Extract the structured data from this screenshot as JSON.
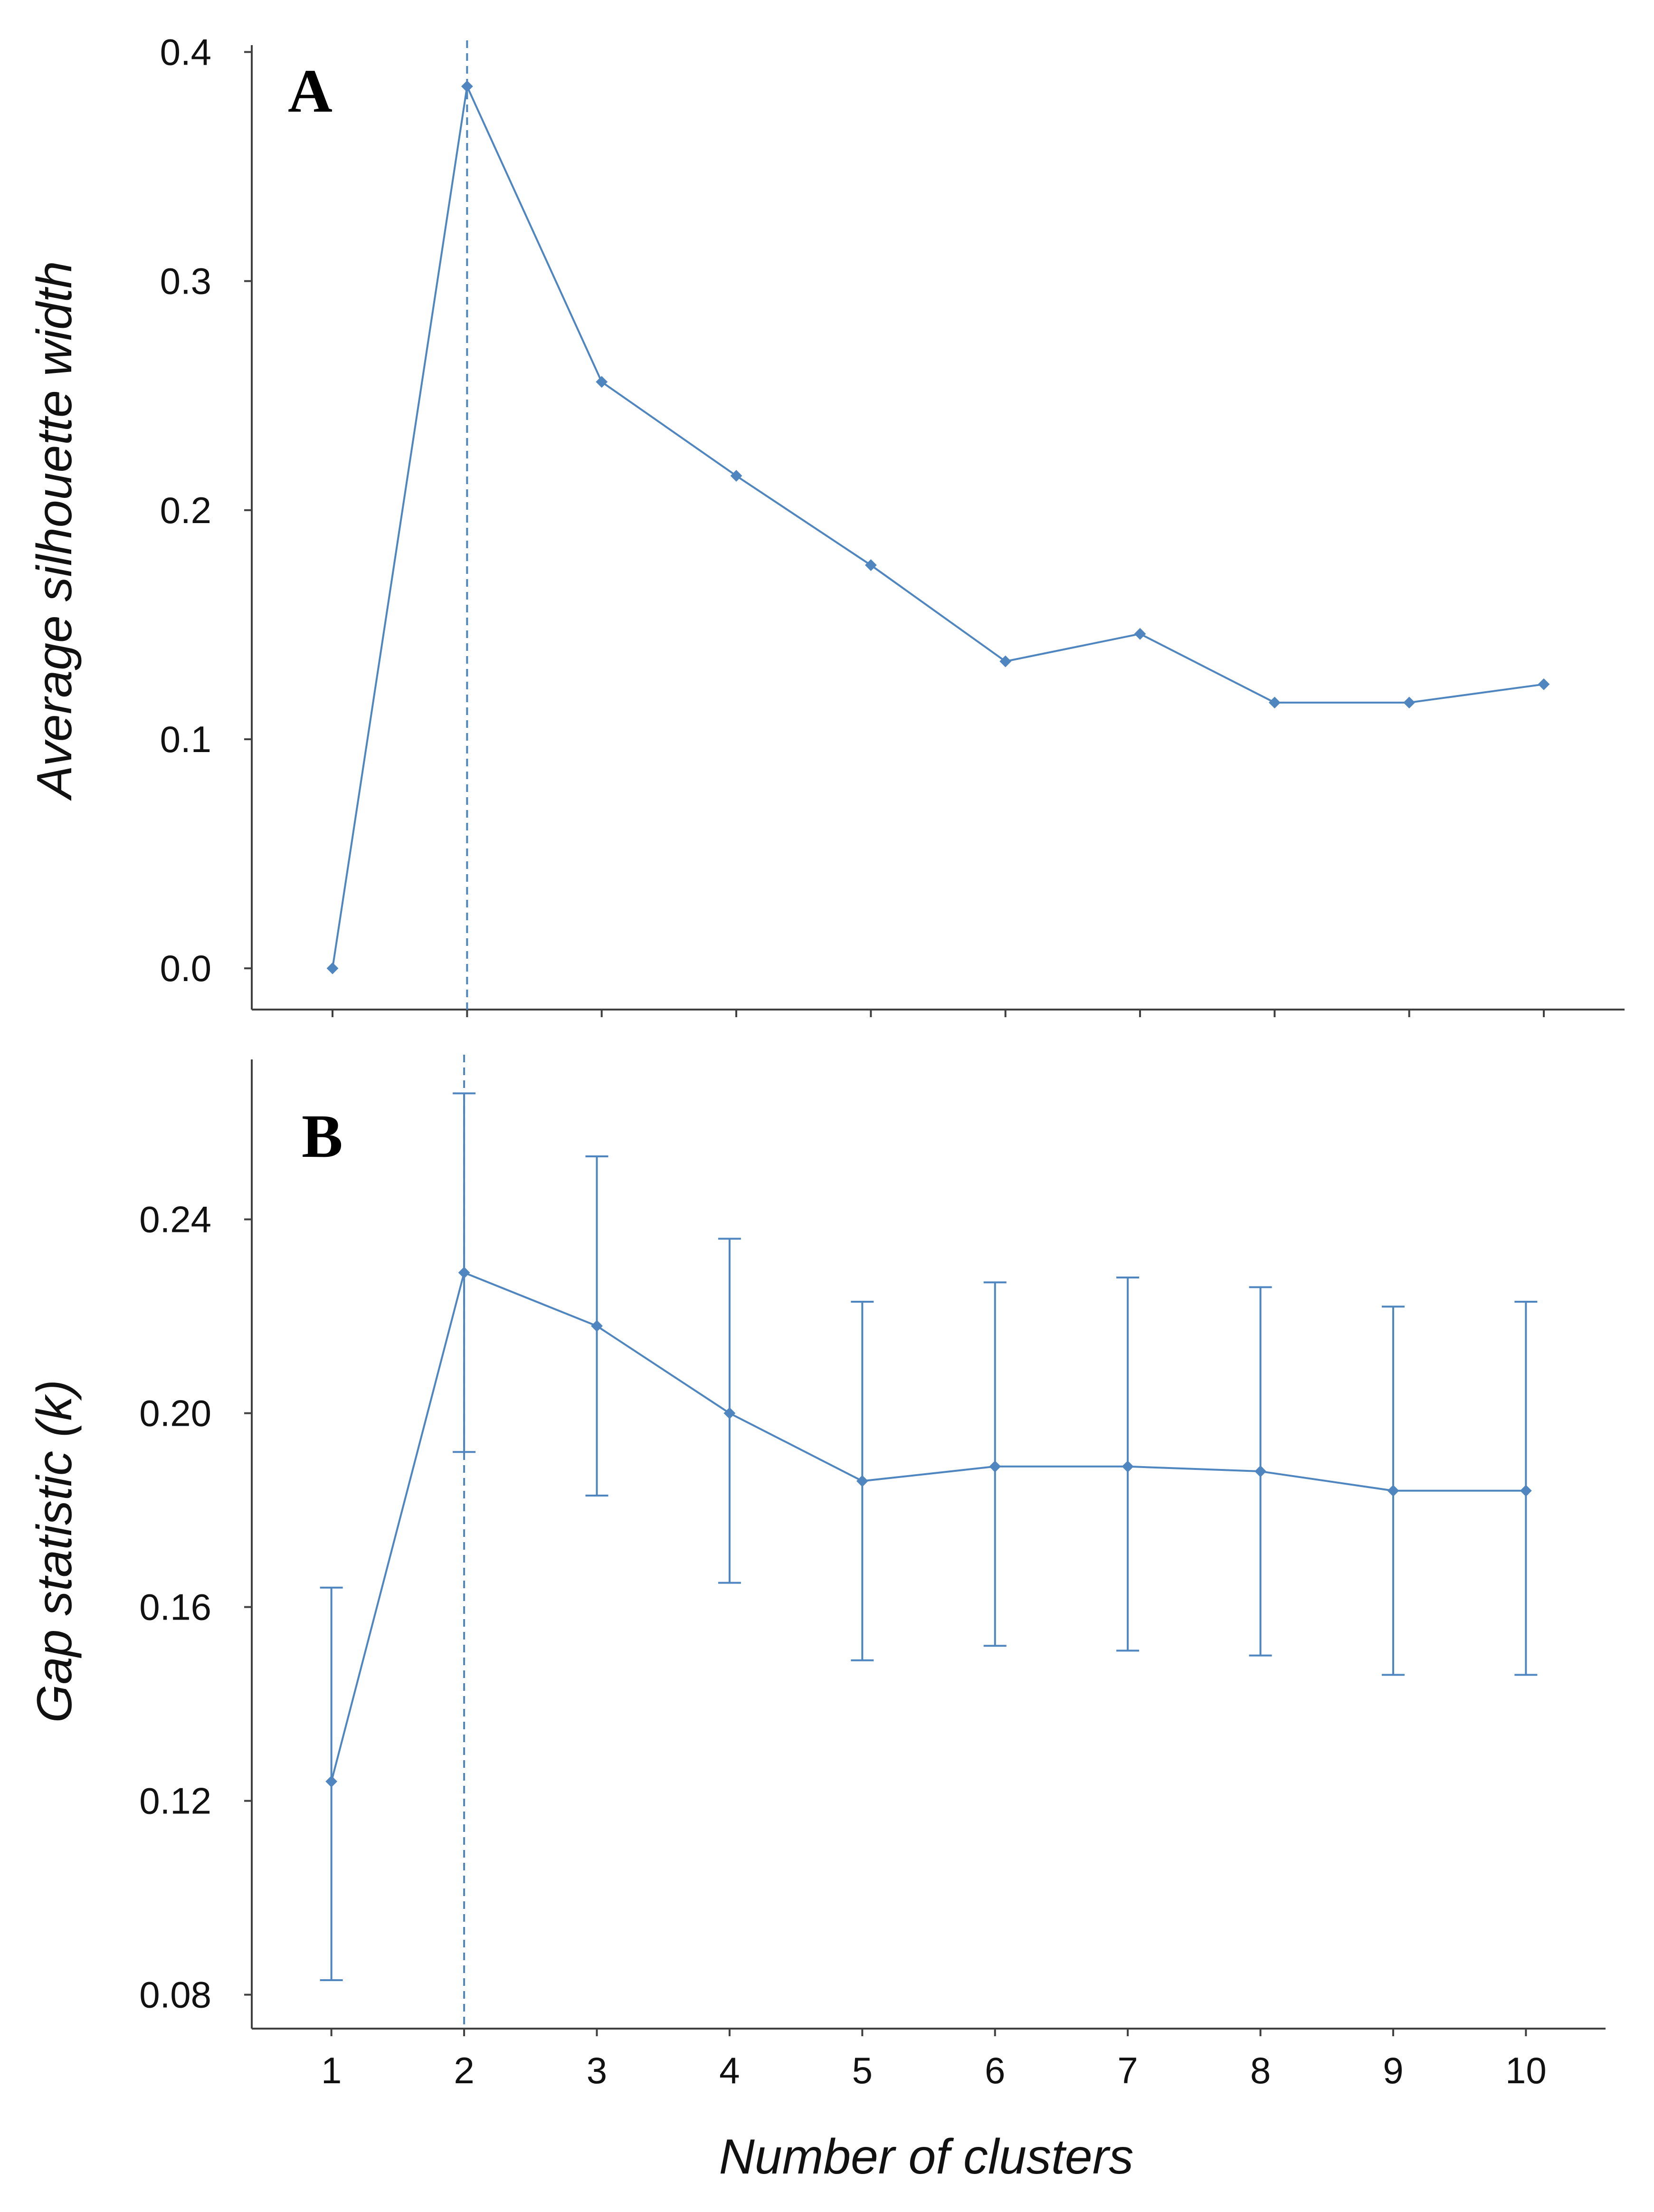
{
  "colors": {
    "series": "#4f86c0",
    "axis": "#404040",
    "text": "#111111"
  },
  "chart_data": [
    {
      "type": "line",
      "panel": "A",
      "ylabel": "Average silhouette width",
      "xlabel": "",
      "x": [
        1,
        2,
        3,
        4,
        5,
        6,
        7,
        8,
        9,
        10
      ],
      "values": [
        0.0,
        0.385,
        0.256,
        0.215,
        0.176,
        0.134,
        0.146,
        0.116,
        0.116,
        0.124
      ],
      "ylim": [
        -0.018,
        0.403
      ],
      "yticks": [
        0.0,
        0.1,
        0.2,
        0.3,
        0.4
      ],
      "ytick_labels": [
        "0.0",
        "0.1",
        "0.2",
        "0.3",
        "0.4"
      ],
      "xlim": [
        0.4,
        10.6
      ],
      "reference_x": 2,
      "grid": false
    },
    {
      "type": "line",
      "panel": "B",
      "ylabel": "Gap statistic (k)",
      "xlabel": "Number of clusters",
      "x": [
        1,
        2,
        3,
        4,
        5,
        6,
        7,
        8,
        9,
        10
      ],
      "values": [
        0.124,
        0.229,
        0.218,
        0.2,
        0.186,
        0.189,
        0.189,
        0.188,
        0.184,
        0.184
      ],
      "err_low": [
        0.083,
        0.192,
        0.183,
        0.165,
        0.149,
        0.152,
        0.151,
        0.15,
        0.146,
        0.146
      ],
      "err_high": [
        0.164,
        0.266,
        0.253,
        0.236,
        0.223,
        0.227,
        0.228,
        0.226,
        0.222,
        0.223
      ],
      "ylim": [
        0.073,
        0.273
      ],
      "yticks": [
        0.08,
        0.12,
        0.16,
        0.2,
        0.24
      ],
      "ytick_labels": [
        "0.08",
        "0.12",
        "0.16",
        "0.20",
        "0.24"
      ],
      "xticks": [
        1,
        2,
        3,
        4,
        5,
        6,
        7,
        8,
        9,
        10
      ],
      "xtick_labels": [
        "1",
        "2",
        "3",
        "4",
        "5",
        "6",
        "7",
        "8",
        "9",
        "10"
      ],
      "xlim": [
        0.4,
        10.6
      ],
      "reference_x": 2,
      "grid": false
    }
  ]
}
